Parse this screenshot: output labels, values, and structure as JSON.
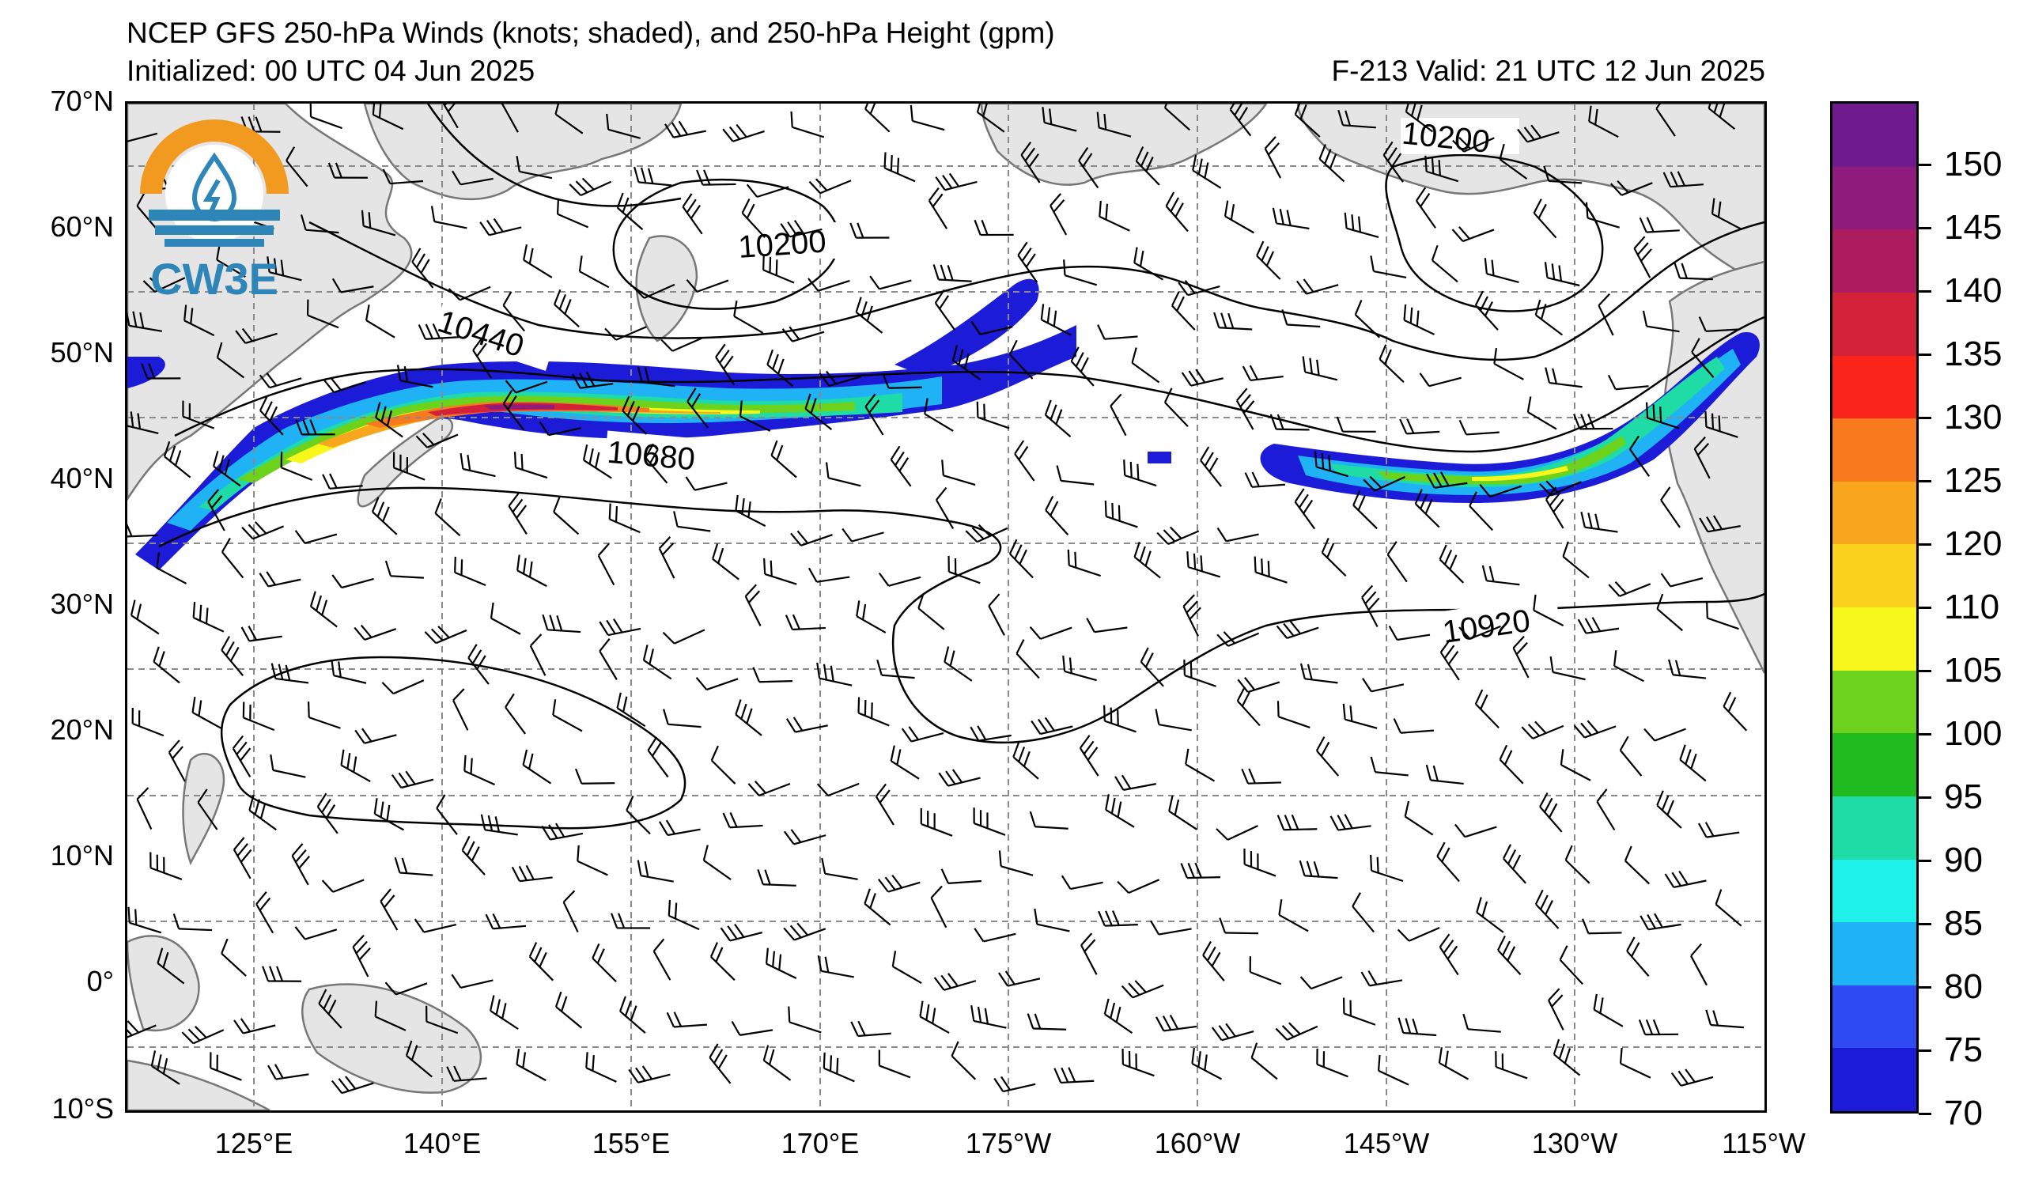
{
  "header": {
    "title": "NCEP GFS 250-hPa Winds (knots; shaded), and 250-hPa Height (gpm)",
    "initialized": "Initialized: 00 UTC 04 Jun 2025",
    "valid": "F-213  Valid: 21 UTC 12 Jun 2025"
  },
  "logo": {
    "text": "CW3E",
    "icon": "cw3e-logo-icon"
  },
  "axes": {
    "lat_labels": [
      "70°N",
      "60°N",
      "50°N",
      "40°N",
      "30°N",
      "20°N",
      "10°N",
      "0°",
      "10°S"
    ],
    "lon_labels": [
      "125°E",
      "140°E",
      "155°E",
      "170°E",
      "175°W",
      "160°W",
      "145°W",
      "130°W",
      "115°W"
    ]
  },
  "contours": {
    "labels": [
      "10200",
      "10200",
      "10440",
      "10680",
      "10920"
    ]
  },
  "colorbar": {
    "labels": [
      "70",
      "75",
      "80",
      "85",
      "90",
      "95",
      "100",
      "105",
      "110",
      "120",
      "125",
      "130",
      "135",
      "140",
      "145",
      "150"
    ],
    "colors": [
      "#1c1cd8",
      "#2f4cf2",
      "#1fb2f5",
      "#1ef0ea",
      "#1fdca6",
      "#1fbb1f",
      "#6dd21c",
      "#f7f71c",
      "#fad21e",
      "#f8a61d",
      "#f77a1e",
      "#fb241b",
      "#d4213a",
      "#ac1c5e",
      "#8f1b7c",
      "#6f1b8f"
    ]
  },
  "map": {
    "land_color": "#e5e5e5",
    "coast_color": "#777777",
    "grid_color": "#8a8a8a"
  }
}
